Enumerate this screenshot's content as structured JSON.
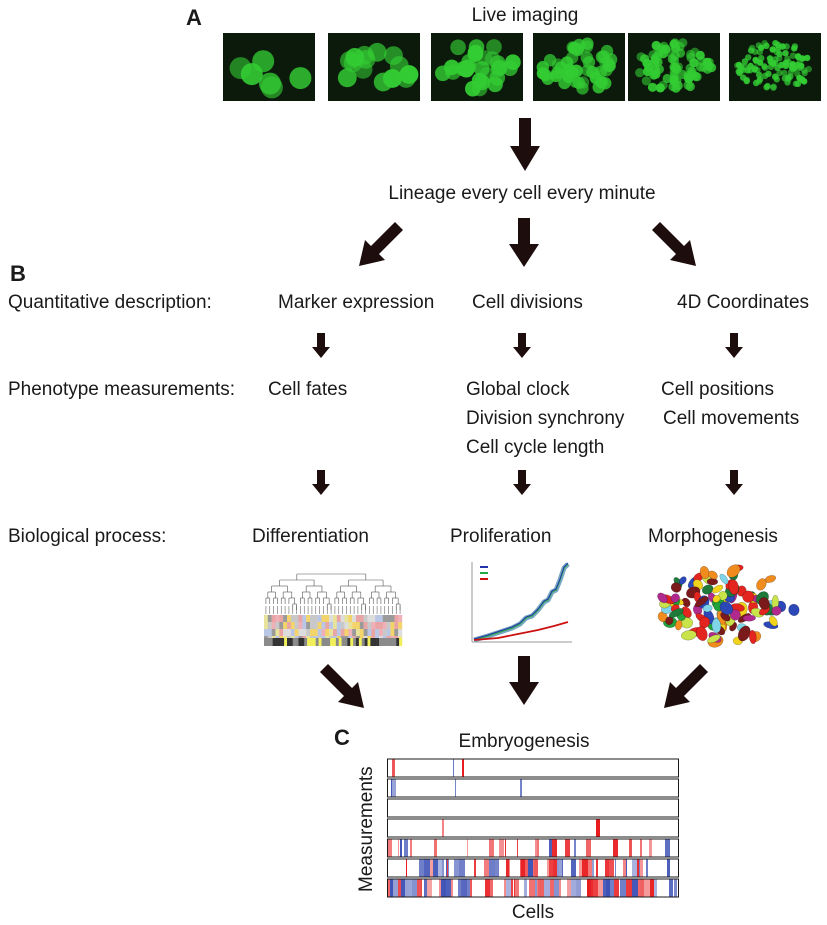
{
  "panel_a": {
    "label": "A",
    "title": "Live imaging",
    "caption": "Lineage every cell every minute"
  },
  "panel_b": {
    "label": "B",
    "rows": {
      "quantitative": "Quantitative description:",
      "phenotype": "Phenotype measurements:",
      "biological": "Biological process:"
    },
    "columns": [
      {
        "description": "Marker expression",
        "measurements": [
          "Cell fates"
        ],
        "process": "Differentiation"
      },
      {
        "description": "Cell divisions",
        "measurements": [
          "Global clock",
          "Division synchrony",
          "Cell cycle length"
        ],
        "process": "Proliferation"
      },
      {
        "description": "4D Coordinates",
        "measurements": [
          "Cell positions",
          "Cell movements"
        ],
        "process": "Morphogenesis"
      }
    ]
  },
  "panel_c": {
    "label": "C",
    "title": "Embryogenesis",
    "ylabel": "Measurements",
    "xlabel": "Cells"
  },
  "colors": {
    "fluorescence": "#33cc33",
    "arrow": "#1e0d0d",
    "heat_high": "#e8191c",
    "heat_low": "#3a4fb4"
  },
  "icons": {
    "flow_arrow": "thick-down-arrow-icon"
  }
}
